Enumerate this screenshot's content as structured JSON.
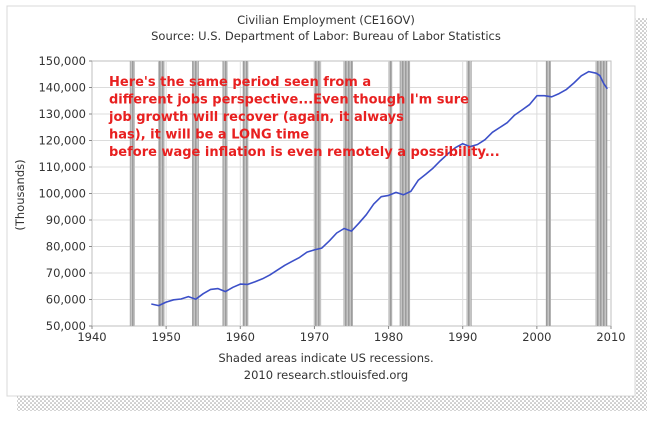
{
  "chart_data": {
    "type": "line",
    "title": "Civilian Employment (CE16OV)",
    "subtitle": "Source: U.S. Department of Labor: Bureau of Labor Statistics",
    "ylabel": "(Thousands)",
    "xlabel": "",
    "xlim": [
      1940,
      2010
    ],
    "ylim": [
      50000,
      150000
    ],
    "x_ticks": [
      1940,
      1950,
      1960,
      1970,
      1980,
      1990,
      2000,
      2010
    ],
    "x_tick_labels": [
      "1940",
      "1950",
      "1960",
      "1970",
      "1980",
      "1990",
      "2000",
      "2010"
    ],
    "y_ticks": [
      50000,
      60000,
      70000,
      80000,
      90000,
      100000,
      110000,
      120000,
      130000,
      140000,
      150000
    ],
    "y_tick_labels": [
      "50,000",
      "60,000",
      "70,000",
      "80,000",
      "90,000",
      "100,000",
      "110,000",
      "120,000",
      "130,000",
      "140,000",
      "150,000"
    ],
    "grid": true,
    "series": [
      {
        "name": "Civilian Employment",
        "color": "#3c50c8",
        "x": [
          1948,
          1949,
          1950,
          1951,
          1952,
          1953,
          1954,
          1955,
          1956,
          1957,
          1958,
          1959,
          1960,
          1961,
          1962,
          1963,
          1964,
          1965,
          1966,
          1967,
          1968,
          1969,
          1970,
          1971,
          1972,
          1973,
          1974,
          1975,
          1976,
          1977,
          1978,
          1979,
          1980,
          1981,
          1982,
          1983,
          1984,
          1985,
          1986,
          1987,
          1988,
          1989,
          1990,
          1991,
          1992,
          1993,
          1994,
          1995,
          1996,
          1997,
          1998,
          1999,
          2000,
          2001,
          2002,
          2003,
          2004,
          2005,
          2006,
          2007,
          2008,
          2008.5,
          2009,
          2009.5
        ],
        "values": [
          58300,
          57700,
          59000,
          59900,
          60200,
          61100,
          60100,
          62200,
          63800,
          64100,
          63000,
          64600,
          65800,
          65700,
          66700,
          67800,
          69300,
          71100,
          72900,
          74400,
          75900,
          77900,
          78700,
          79400,
          82100,
          85100,
          86800,
          85800,
          88800,
          92000,
          96000,
          98800,
          99300,
          100400,
          99500,
          100800,
          105000,
          107200,
          109600,
          112400,
          115000,
          117300,
          118800,
          117700,
          118500,
          120300,
          123100,
          124900,
          126700,
          129600,
          131500,
          133500,
          136900,
          136900,
          136500,
          137700,
          139300,
          141700,
          144400,
          146000,
          145400,
          144500,
          141600,
          139500
        ]
      }
    ],
    "recessions": [
      [
        1945.1,
        1945.8
      ],
      [
        1948.9,
        1949.8
      ],
      [
        1953.5,
        1954.4
      ],
      [
        1957.6,
        1958.3
      ],
      [
        1960.3,
        1961.1
      ],
      [
        1969.9,
        1970.9
      ],
      [
        1973.9,
        1975.2
      ],
      [
        1980.0,
        1980.5
      ],
      [
        1981.5,
        1982.9
      ],
      [
        1990.5,
        1991.2
      ],
      [
        2001.2,
        2001.9
      ],
      [
        2007.9,
        2009.5
      ]
    ],
    "annotation": "Here's the same period seen from a different jobs perspective...Even though I'm sure job growth will recover (again, it always has), it will be a LONG time before wage inflation is even remotely a possibility...",
    "footer": [
      "Shaded areas indicate US recessions.",
      "2010 research.stlouisfed.org"
    ]
  },
  "colors": {
    "line": "#3c50c8",
    "annotation": "#e82020",
    "recession": "#b0b0b0",
    "grid": "#dcdcdc",
    "plot_bg": "#ffffff"
  }
}
